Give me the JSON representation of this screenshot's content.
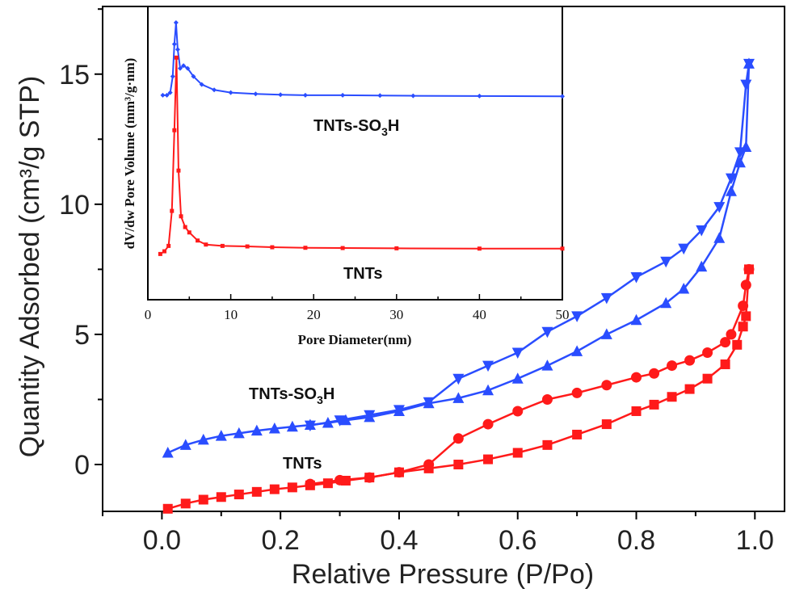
{
  "colors": {
    "tnts": "#ff1a1a",
    "tnts_so3h": "#2a4dff",
    "axis": "#000000"
  },
  "chart_data": [
    {
      "type": "line",
      "xlabel": "Relative Pressure (P/Po)",
      "ylabel": "Quantity Adsorbed (cm³/g STP)",
      "xlim": [
        -0.1,
        1.05
      ],
      "ylim": [
        -1.8,
        17.6
      ],
      "xticks": [
        "0.0",
        "0.2",
        "0.4",
        "0.6",
        "0.8",
        "1.0"
      ],
      "yticks": [
        "0",
        "5",
        "10",
        "15"
      ],
      "grid": false,
      "series": [
        {
          "name": "TNTs-SO3H",
          "color_key": "tnts_so3h",
          "marker": "triangle-up",
          "x": [
            0.01,
            0.04,
            0.07,
            0.1,
            0.13,
            0.16,
            0.19,
            0.22,
            0.25,
            0.28,
            0.31,
            0.35,
            0.4,
            0.45,
            0.5,
            0.55,
            0.6,
            0.65,
            0.7,
            0.75,
            0.8,
            0.85,
            0.88,
            0.91,
            0.94,
            0.96,
            0.975,
            0.985,
            0.99
          ],
          "y": [
            0.45,
            0.75,
            0.95,
            1.1,
            1.2,
            1.3,
            1.38,
            1.45,
            1.52,
            1.6,
            1.7,
            1.82,
            2.05,
            2.35,
            2.55,
            2.85,
            3.3,
            3.8,
            4.35,
            5.0,
            5.55,
            6.2,
            6.75,
            7.6,
            8.7,
            10.5,
            11.6,
            12.2,
            15.4
          ]
        },
        {
          "name": "TNTs-SO3H",
          "color_key": "tnts_so3h",
          "marker": "triangle-down",
          "x": [
            0.99,
            0.985,
            0.975,
            0.96,
            0.94,
            0.91,
            0.88,
            0.85,
            0.8,
            0.75,
            0.7,
            0.65,
            0.6,
            0.55,
            0.5,
            0.45,
            0.4,
            0.35,
            0.3,
            0.25
          ],
          "y": [
            15.4,
            14.6,
            12.0,
            11.0,
            9.9,
            9.0,
            8.3,
            7.8,
            7.2,
            6.4,
            5.7,
            5.1,
            4.3,
            3.8,
            3.3,
            2.4,
            2.1,
            1.9,
            1.7,
            1.5
          ]
        },
        {
          "name": "TNTs",
          "color_key": "tnts",
          "marker": "square",
          "x": [
            0.01,
            0.04,
            0.07,
            0.1,
            0.13,
            0.16,
            0.19,
            0.22,
            0.25,
            0.28,
            0.31,
            0.35,
            0.4,
            0.45,
            0.5,
            0.55,
            0.6,
            0.65,
            0.7,
            0.75,
            0.8,
            0.83,
            0.86,
            0.89,
            0.92,
            0.95,
            0.97,
            0.98,
            0.985,
            0.99
          ],
          "y": [
            -1.7,
            -1.5,
            -1.35,
            -1.25,
            -1.15,
            -1.05,
            -0.95,
            -0.88,
            -0.8,
            -0.72,
            -0.62,
            -0.5,
            -0.3,
            -0.15,
            0.0,
            0.2,
            0.45,
            0.75,
            1.15,
            1.55,
            2.05,
            2.3,
            2.6,
            2.9,
            3.3,
            3.85,
            4.6,
            5.3,
            5.7,
            7.5
          ]
        },
        {
          "name": "TNTs",
          "color_key": "tnts",
          "marker": "circle",
          "x": [
            0.99,
            0.985,
            0.98,
            0.96,
            0.95,
            0.92,
            0.89,
            0.86,
            0.83,
            0.8,
            0.75,
            0.7,
            0.65,
            0.6,
            0.55,
            0.5,
            0.45,
            0.4,
            0.35,
            0.3,
            0.25
          ],
          "y": [
            7.5,
            6.9,
            6.1,
            5.0,
            4.7,
            4.3,
            4.0,
            3.8,
            3.5,
            3.35,
            3.05,
            2.75,
            2.5,
            2.05,
            1.55,
            1.0,
            0.0,
            -0.3,
            -0.5,
            -0.6,
            -0.75
          ]
        }
      ],
      "annotations": [
        {
          "text": "TNTs-SO",
          "sub": "3",
          "tail": "H",
          "color_key": "tnts_so3h"
        },
        {
          "text": "TNTs",
          "color_key": "tnts"
        }
      ]
    },
    {
      "type": "line",
      "xlabel": "Pore Diameter(nm)",
      "ylabel": "dV/dw Pore Volume (mm³/g·nm)",
      "xlim": [
        0,
        50
      ],
      "ylim": [
        0,
        1
      ],
      "xticks": [
        "0",
        "10",
        "20",
        "30",
        "40",
        "50"
      ],
      "grid": false,
      "series": [
        {
          "name": "TNTs-SO3H",
          "color_key": "tnts_so3h",
          "x": [
            1.8,
            2.3,
            2.7,
            3.0,
            3.2,
            3.4,
            3.6,
            3.9,
            4.3,
            4.8,
            5.5,
            6.5,
            8,
            10,
            13,
            16,
            19,
            23.5,
            28,
            32,
            40,
            50
          ],
          "y": [
            0.73,
            0.73,
            0.74,
            0.8,
            0.92,
            1.0,
            0.9,
            0.83,
            0.84,
            0.83,
            0.8,
            0.77,
            0.75,
            0.74,
            0.735,
            0.732,
            0.73,
            0.73,
            0.729,
            0.728,
            0.727,
            0.726
          ]
        },
        {
          "name": "TNTs",
          "color_key": "tnts",
          "x": [
            1.5,
            2.0,
            2.5,
            2.9,
            3.2,
            3.45,
            3.7,
            4.0,
            4.5,
            5.0,
            6.0,
            7.0,
            9,
            12,
            15,
            19,
            23.5,
            30,
            40,
            50
          ],
          "y": [
            0.14,
            0.15,
            0.17,
            0.3,
            0.6,
            0.87,
            0.45,
            0.28,
            0.24,
            0.22,
            0.19,
            0.175,
            0.17,
            0.168,
            0.165,
            0.163,
            0.162,
            0.161,
            0.16,
            0.16
          ]
        }
      ],
      "annotations": [
        {
          "text": "TNTs-SO",
          "sub": "3",
          "tail": "H",
          "color_key": "tnts_so3h"
        },
        {
          "text": "TNTs",
          "color_key": "tnts"
        }
      ]
    }
  ]
}
